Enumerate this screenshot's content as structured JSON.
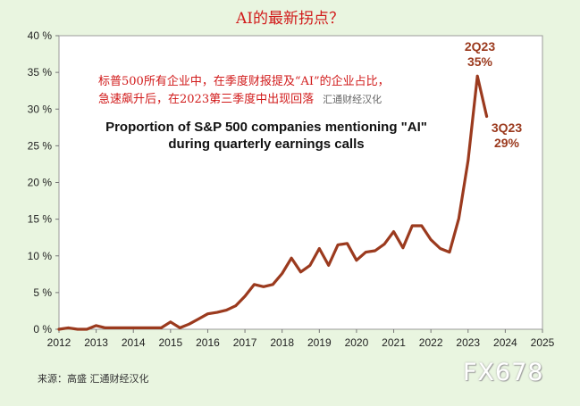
{
  "header": {
    "title": "AI的最新拐点？"
  },
  "note": {
    "line1": "标普500所有企业中，在季度财报提及“AI”的企业占比，",
    "line2": "急速飙升后，在2023第三季度中出现回落",
    "watermark": "汇通财经汉化"
  },
  "footer": {
    "source": "来源：高盛    汇通财经汉化",
    "logo": "FX678"
  },
  "colors": {
    "line": "#9b3a1e",
    "accent_text": "#d11a1a",
    "background": "#e9f5e0",
    "plot_bg": "#ffffff"
  },
  "chart_data": {
    "type": "line",
    "title": "Proportion of S&P 500 companies mentioning \"AI\" during quarterly earnings calls",
    "title_lines": [
      "Proportion of S&P 500 companies mentioning \"AI\"",
      "during quarterly earnings calls"
    ],
    "xlabel": "",
    "ylabel": "",
    "xlim": [
      2012,
      2025
    ],
    "ylim": [
      0,
      40
    ],
    "x_ticks": [
      "2012",
      "2013",
      "2014",
      "2015",
      "2016",
      "2017",
      "2018",
      "2019",
      "2020",
      "2021",
      "2022",
      "2023",
      "2024",
      "2025"
    ],
    "y_ticks": [
      "0 %",
      "5 %",
      "10 %",
      "15 %",
      "20 %",
      "25 %",
      "30 %",
      "35 %",
      "40 %"
    ],
    "grid": false,
    "series": [
      {
        "x": [
          2012.0,
          2012.25,
          2012.5,
          2012.75,
          2013.0,
          2013.25,
          2013.5,
          2013.75,
          2014.0,
          2014.25,
          2014.5,
          2014.75,
          2015.0,
          2015.25,
          2015.5,
          2015.75,
          2016.0,
          2016.25,
          2016.5,
          2016.75,
          2017.0,
          2017.25,
          2017.5,
          2017.75,
          2018.0,
          2018.25,
          2018.5,
          2018.75,
          2019.0,
          2019.25,
          2019.5,
          2019.75,
          2020.0,
          2020.25,
          2020.5,
          2020.75,
          2021.0,
          2021.25,
          2021.5,
          2021.75,
          2022.0,
          2022.25,
          2022.5,
          2022.75,
          2023.0,
          2023.25,
          2023.5
        ],
        "y": [
          0.0,
          0.2,
          0.0,
          0.0,
          0.5,
          0.2,
          0.2,
          0.2,
          0.2,
          0.2,
          0.2,
          0.2,
          1.0,
          0.2,
          0.7,
          1.4,
          2.1,
          2.3,
          2.6,
          3.2,
          4.5,
          6.1,
          5.8,
          6.1,
          7.6,
          9.7,
          7.8,
          8.7,
          11.0,
          8.7,
          11.5,
          11.7,
          9.4,
          10.5,
          10.7,
          11.6,
          13.3,
          11.1,
          14.1,
          14.1,
          12.2,
          11.0,
          10.5,
          15.1,
          23.0,
          34.5,
          29.0
        ]
      }
    ],
    "annotations": [
      {
        "label": "2Q23",
        "value": "35%"
      },
      {
        "label": "3Q23",
        "value": "29%"
      }
    ]
  }
}
